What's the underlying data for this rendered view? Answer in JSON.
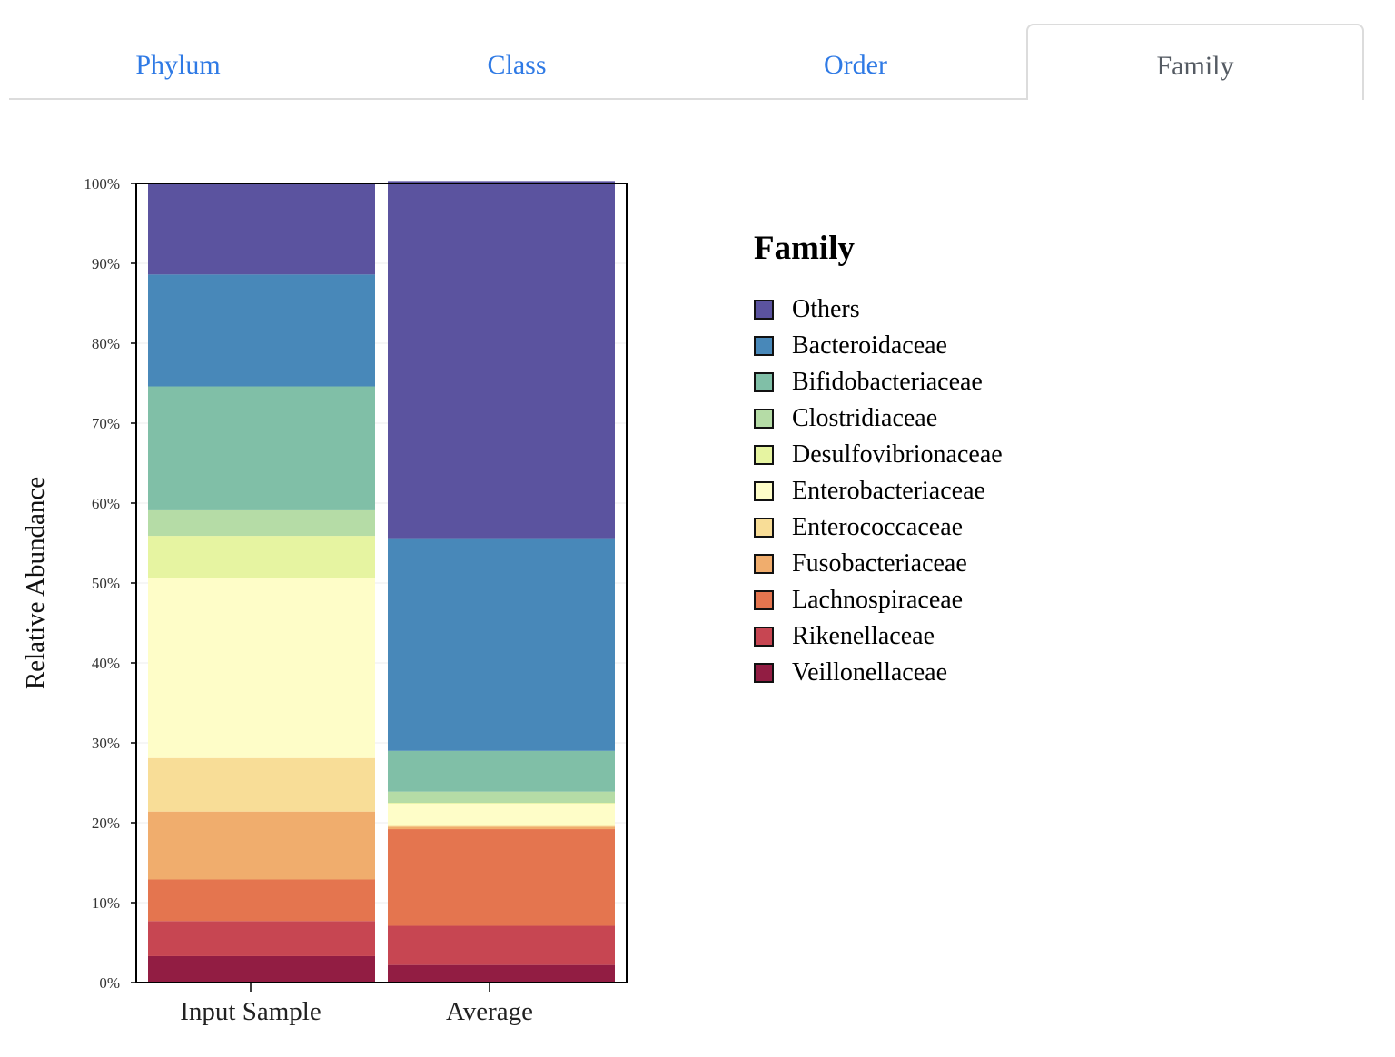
{
  "tabs": [
    {
      "label": "Phylum",
      "active": false
    },
    {
      "label": "Class",
      "active": false
    },
    {
      "label": "Order",
      "active": false
    },
    {
      "label": "Family",
      "active": true
    }
  ],
  "chart_data": {
    "type": "bar",
    "stacked": true,
    "ylabel": "Relative Abundance",
    "ylim": [
      0,
      100
    ],
    "yticks": [
      "0%",
      "10%",
      "20%",
      "30%",
      "40%",
      "50%",
      "60%",
      "70%",
      "80%",
      "90%",
      "100%"
    ],
    "categories": [
      "Input Sample",
      "Average"
    ],
    "legend_title": "Family",
    "legend_position": "right",
    "series": [
      {
        "name": "Veillonellaceae",
        "color": "#921d43",
        "values": [
          3.3,
          2.2
        ]
      },
      {
        "name": "Rikenellaceae",
        "color": "#c74652",
        "values": [
          4.4,
          4.9
        ]
      },
      {
        "name": "Lachnospiraceae",
        "color": "#e4754f",
        "values": [
          5.2,
          12.1
        ]
      },
      {
        "name": "Fusobacteriaceae",
        "color": "#f0ad6d",
        "values": [
          8.5,
          0.3
        ]
      },
      {
        "name": "Enterococcaceae",
        "color": "#f8dd97",
        "values": [
          6.7,
          0.1
        ]
      },
      {
        "name": "Enterobacteriaceae",
        "color": "#fefdc8",
        "values": [
          22.5,
          2.8
        ]
      },
      {
        "name": "Desulfovibrionaceae",
        "color": "#e6f4a1",
        "values": [
          5.3,
          0.1
        ]
      },
      {
        "name": "Clostridiaceae",
        "color": "#b5dca6",
        "values": [
          3.2,
          1.4
        ]
      },
      {
        "name": "Bifidobacteriaceae",
        "color": "#80bfa7",
        "values": [
          15.5,
          5.1
        ]
      },
      {
        "name": "Bacteroidaceae",
        "color": "#4888b9",
        "values": [
          14.0,
          26.5
        ]
      },
      {
        "name": "Others",
        "color": "#5b539f",
        "values": [
          11.4,
          44.8
        ]
      }
    ],
    "legend_order": [
      "Others",
      "Bacteroidaceae",
      "Bifidobacteriaceae",
      "Clostridiaceae",
      "Desulfovibrionaceae",
      "Enterobacteriaceae",
      "Enterococcaceae",
      "Fusobacteriaceae",
      "Lachnospiraceae",
      "Rikenellaceae",
      "Veillonellaceae"
    ]
  }
}
